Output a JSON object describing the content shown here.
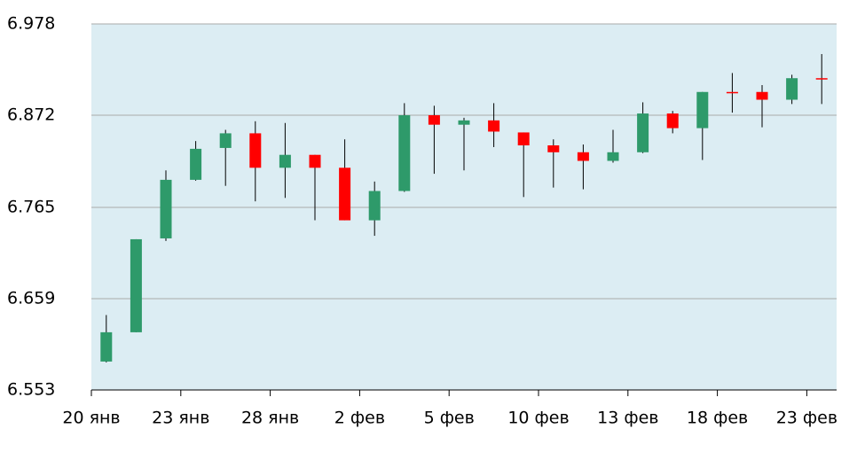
{
  "chart_data": {
    "type": "candlestick",
    "categories": [
      "20 янв",
      null,
      null,
      "23 янв",
      null,
      null,
      "28 янв",
      null,
      null,
      "2 фев",
      null,
      null,
      "5 фев",
      null,
      null,
      "10 фев",
      null,
      null,
      "13 фев",
      null,
      null,
      "18 фев",
      null,
      null,
      "23 фев"
    ],
    "open": [
      6.586,
      6.62,
      6.729,
      6.797,
      6.834,
      6.851,
      6.811,
      6.826,
      6.811,
      6.75,
      6.784,
      6.872,
      6.861,
      6.866,
      6.852,
      6.837,
      6.829,
      6.819,
      6.829,
      6.874,
      6.857,
      6.899,
      6.899,
      6.89,
      6.915
    ],
    "high": [
      6.64,
      6.728,
      6.808,
      6.842,
      6.855,
      6.865,
      6.863,
      6.826,
      6.844,
      6.795,
      6.886,
      6.883,
      6.869,
      6.886,
      6.852,
      6.844,
      6.838,
      6.855,
      6.887,
      6.877,
      6.899,
      6.921,
      6.907,
      6.919,
      6.943
    ],
    "low": [
      6.585,
      6.62,
      6.726,
      6.796,
      6.79,
      6.772,
      6.776,
      6.75,
      6.75,
      6.732,
      6.783,
      6.804,
      6.808,
      6.835,
      6.777,
      6.788,
      6.786,
      6.817,
      6.828,
      6.851,
      6.82,
      6.875,
      6.858,
      6.885,
      6.885
    ],
    "close": [
      6.62,
      6.728,
      6.797,
      6.833,
      6.851,
      6.811,
      6.826,
      6.811,
      6.75,
      6.784,
      6.872,
      6.861,
      6.866,
      6.853,
      6.837,
      6.829,
      6.819,
      6.829,
      6.874,
      6.857,
      6.899,
      6.898,
      6.89,
      6.915,
      6.914
    ],
    "up_color": "#2e9a6a",
    "down_color": "#ff0000",
    "ylim": [
      6.553,
      6.978
    ],
    "yticks": [
      6.553,
      6.659,
      6.765,
      6.872,
      6.978
    ],
    "grid": true
  }
}
